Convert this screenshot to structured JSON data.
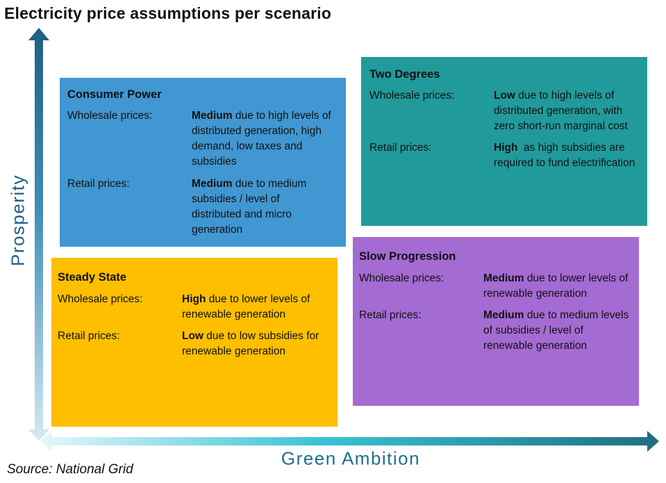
{
  "title": "Electricity price assumptions per scenario",
  "axes": {
    "y_label": "Prosperity",
    "x_label": "Green Ambition"
  },
  "source": "Source: National Grid",
  "colors": {
    "consumer_power": "#4197d1",
    "two_degrees": "#219a9c",
    "steady_state": "#fdbf00",
    "slow_progression": "#a46bd3"
  },
  "scenarios": {
    "consumer_power": {
      "title": "Consumer  Power",
      "wholesale_label": "Wholesale prices:",
      "wholesale_level": "Medium",
      "wholesale_text": " due to high levels of distributed generation, high demand, low taxes and subsidies",
      "retail_label": "Retail prices:",
      "retail_level": "Medium",
      "retail_text": " due to medium subsidies / level of distributed and micro generation"
    },
    "two_degrees": {
      "title": "Two Degrees",
      "wholesale_label": "Wholesale prices:",
      "wholesale_level": "Low",
      "wholesale_text": " due to high levels of distributed generation, with zero short-run marginal cost",
      "retail_label": "Retail prices:",
      "retail_level": "High",
      "retail_text": "  as high subsidies are required to fund electrification"
    },
    "steady_state": {
      "title": "Steady State",
      "wholesale_label": "Wholesale prices:",
      "wholesale_level": "High",
      "wholesale_text": " due to lower levels of renewable generation",
      "retail_label": "Retail prices:",
      "retail_level": "Low",
      "retail_text": " due to low subsidies for renewable generation"
    },
    "slow_progression": {
      "title": "Slow Progression",
      "wholesale_label": "Wholesale prices:",
      "wholesale_level": "Medium",
      "wholesale_text": " due to lower levels of renewable generation",
      "retail_label": "Retail prices:",
      "retail_level": "Medium",
      "retail_text": " due to medium levels of subsidies / level of renewable generation"
    }
  }
}
